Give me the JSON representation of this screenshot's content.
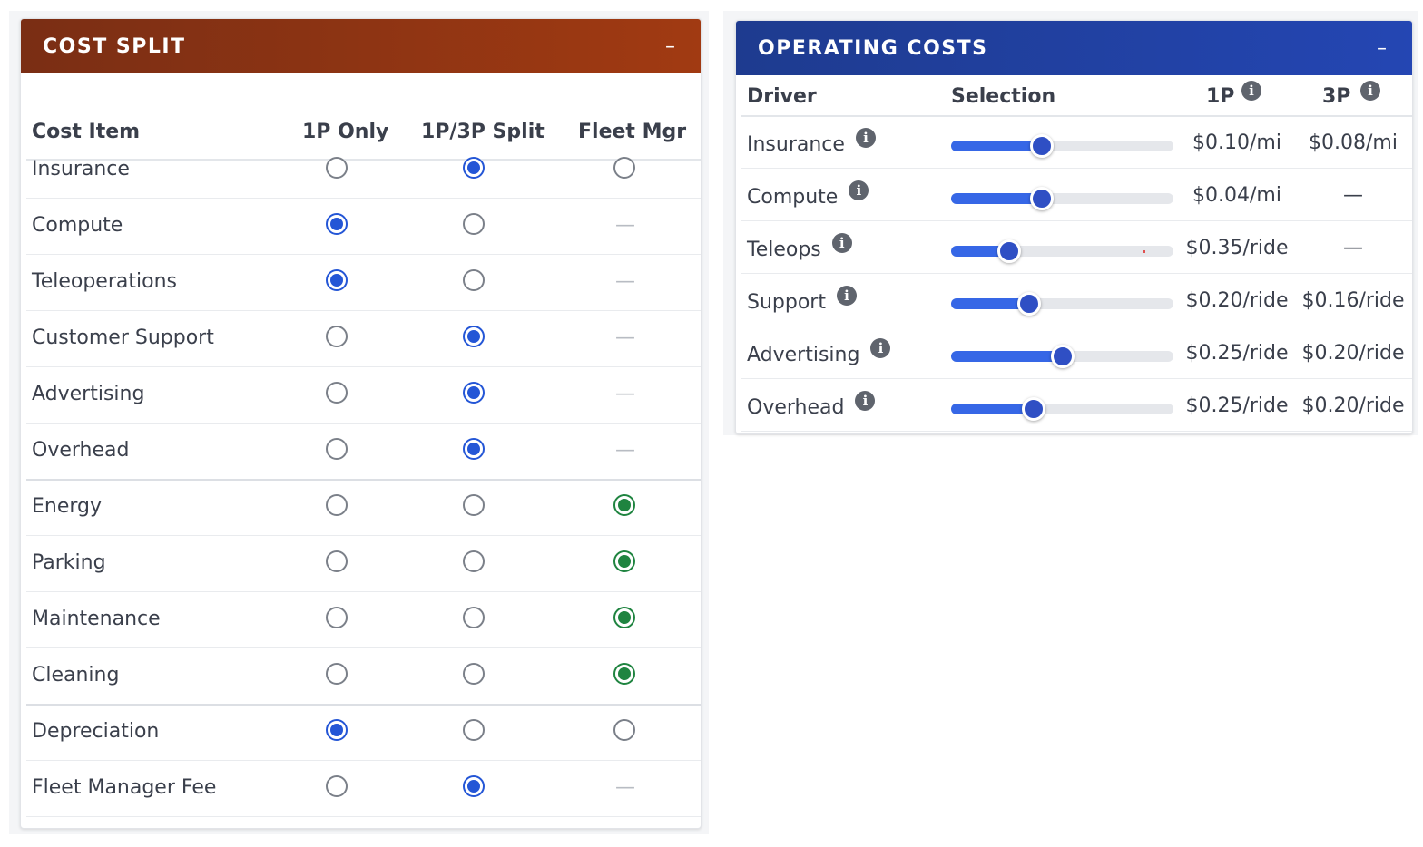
{
  "cost_split": {
    "title": "COST SPLIT",
    "collapse_label": "–",
    "columns": [
      "Cost Item",
      "1P Only",
      "1P/3P Split",
      "Fleet Mgr"
    ],
    "na_symbol": "—",
    "rows": [
      {
        "label": "Insurance",
        "selected": "split",
        "fleet_available": true
      },
      {
        "label": "Compute",
        "selected": "1p",
        "fleet_available": false
      },
      {
        "label": "Teleoperations",
        "selected": "1p",
        "fleet_available": false
      },
      {
        "label": "Customer Support",
        "selected": "split",
        "fleet_available": false
      },
      {
        "label": "Advertising",
        "selected": "split",
        "fleet_available": false
      },
      {
        "label": "Overhead",
        "selected": "split",
        "fleet_available": false
      },
      {
        "label": "Energy",
        "selected": "fleet",
        "fleet_available": true
      },
      {
        "label": "Parking",
        "selected": "fleet",
        "fleet_available": true
      },
      {
        "label": "Maintenance",
        "selected": "fleet",
        "fleet_available": true
      },
      {
        "label": "Cleaning",
        "selected": "fleet",
        "fleet_available": true
      },
      {
        "label": "Depreciation",
        "selected": "1p",
        "fleet_available": true
      },
      {
        "label": "Fleet Manager Fee",
        "selected": "split",
        "fleet_available": false
      }
    ],
    "colors": {
      "header_start": "#7a2e14",
      "header_end": "#a13a12",
      "radio_blue": "#2456d6",
      "radio_green": "#1f8440"
    }
  },
  "operating_costs": {
    "title": "OPERATING COSTS",
    "collapse_label": "–",
    "columns": {
      "driver": "Driver",
      "selection": "Selection",
      "p1": "1P",
      "p3": "3P"
    },
    "info_glyph": "i",
    "rows": [
      {
        "label": "Insurance",
        "slider_fraction": 0.41,
        "p1": "$0.10/mi",
        "p3": "$0.08/mi"
      },
      {
        "label": "Compute",
        "slider_fraction": 0.41,
        "p1": "$0.04/mi",
        "p3": "—"
      },
      {
        "label": "Teleops",
        "slider_fraction": 0.26,
        "p1": "$0.35/ride",
        "p3": "—"
      },
      {
        "label": "Support",
        "slider_fraction": 0.35,
        "p1": "$0.20/ride",
        "p3": "$0.16/ride"
      },
      {
        "label": "Advertising",
        "slider_fraction": 0.5,
        "p1": "$0.25/ride",
        "p3": "$0.20/ride"
      },
      {
        "label": "Overhead",
        "slider_fraction": 0.37,
        "p1": "$0.25/ride",
        "p3": "$0.20/ride"
      }
    ],
    "colors": {
      "header_start": "#1e3b8f",
      "header_end": "#2446b3",
      "slider_fill": "#3667e6",
      "thumb": "#2f4fc4"
    }
  }
}
